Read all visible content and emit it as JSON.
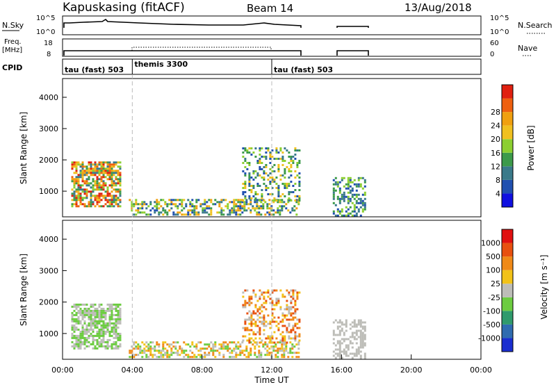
{
  "header": {
    "station": "Kapuskasing (fitACF)",
    "beam": "Beam 14",
    "date": "13/Aug/2018"
  },
  "top_strip": {
    "nsky_label": "N.Sky",
    "nsky_ticks": [
      "10^5",
      "10^0"
    ],
    "nsearch_label": "N.Search",
    "nsearch_ticks": [
      "10^5",
      "10^0"
    ],
    "freq_label": "Freq.",
    "freq_unit": "[MHz]",
    "freq_ticks": [
      "18",
      "8"
    ],
    "nave_label": "Nave",
    "nave_ticks": [
      "60",
      "0"
    ],
    "cpid_label": "CPID",
    "cpid_segments": [
      {
        "label": "tau (fast) 503",
        "start_h": 0,
        "end_h": 4.0
      },
      {
        "label": "themis 3300",
        "start_h": 4.0,
        "end_h": 12.0
      },
      {
        "label": "tau (fast) 503",
        "start_h": 12.0,
        "end_h": 24.0
      }
    ]
  },
  "axes": {
    "x_label": "Time UT",
    "x_ticks": [
      "00:00",
      "04:00",
      "08:00",
      "12:00",
      "16:00",
      "20:00",
      "00:00"
    ],
    "y_label": "Slant Range [km]",
    "y_ticks": [
      "1000",
      "2000",
      "3000",
      "4000"
    ]
  },
  "colorbars": {
    "power": {
      "label": "Power [dB]",
      "ticks": [
        "4",
        "8",
        "12",
        "16",
        "20",
        "24",
        "28"
      ],
      "colors": [
        "#1010e0",
        "#2050b0",
        "#3a7a8a",
        "#3c9a4a",
        "#8ccf30",
        "#f0c020",
        "#f0a010",
        "#ee6010",
        "#e02010"
      ]
    },
    "velocity": {
      "label": "Velocity [m s⁻¹]",
      "ticks": [
        "1000",
        "500",
        "100",
        "25",
        "-25",
        "-100",
        "-500",
        "-1000"
      ],
      "colors": [
        "#1a2ed0",
        "#2f6cb0",
        "#2f9a6c",
        "#6ccc40",
        "#bdbdb8",
        "#f2c218",
        "#f08a18",
        "#e85010",
        "#e01010"
      ]
    }
  },
  "chart_data": [
    {
      "type": "heatmap",
      "title": "Power",
      "x_range_h": [
        0,
        24
      ],
      "y_range_km": [
        180,
        4600
      ],
      "colorbar": "power",
      "scatter_regions": [
        {
          "t0": 0.5,
          "t1": 3.3,
          "r0": 550,
          "r1": 1950,
          "level": [
            2,
            8
          ],
          "density": 0.7
        },
        {
          "t0": 3.8,
          "t1": 13.6,
          "r0": 250,
          "r1": 750,
          "level": [
            1,
            6
          ],
          "density": 0.5
        },
        {
          "t0": 10.3,
          "t1": 13.6,
          "r0": 700,
          "r1": 2400,
          "level": [
            1,
            5
          ],
          "density": 0.35
        },
        {
          "t0": 15.5,
          "t1": 17.4,
          "r0": 250,
          "r1": 1450,
          "level": [
            1,
            4
          ],
          "density": 0.45
        }
      ]
    },
    {
      "type": "heatmap",
      "title": "Velocity",
      "x_range_h": [
        0,
        24
      ],
      "y_range_km": [
        180,
        4600
      ],
      "colorbar": "velocity",
      "scatter_regions": [
        {
          "t0": 0.5,
          "t1": 3.3,
          "r0": 550,
          "r1": 1950,
          "level": [
            3,
            4
          ],
          "density": 0.7
        },
        {
          "t0": 3.8,
          "t1": 13.6,
          "r0": 250,
          "r1": 750,
          "level": [
            3,
            6
          ],
          "density": 0.5
        },
        {
          "t0": 10.3,
          "t1": 13.6,
          "r0": 700,
          "r1": 2400,
          "level": [
            4,
            7
          ],
          "density": 0.35
        },
        {
          "t0": 15.5,
          "t1": 17.4,
          "r0": 250,
          "r1": 1450,
          "level": [
            4,
            4
          ],
          "density": 0.45
        }
      ]
    }
  ]
}
